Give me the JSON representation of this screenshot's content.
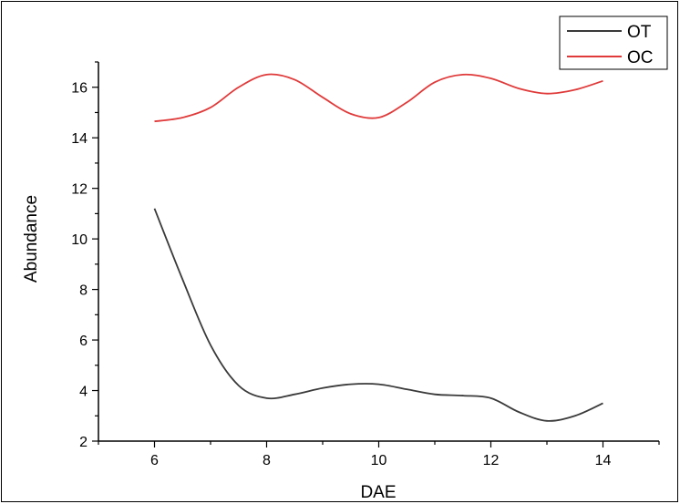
{
  "chart_data": {
    "type": "line",
    "title": "",
    "xlabel": "DAE",
    "ylabel": "Abundance",
    "xlim": [
      5,
      15
    ],
    "ylim": [
      2,
      17
    ],
    "xticks": [
      6,
      8,
      10,
      12,
      14
    ],
    "yticks": [
      2,
      4,
      6,
      8,
      10,
      12,
      14,
      16
    ],
    "grid": false,
    "legend_position": "top-right",
    "series": [
      {
        "name": "OT",
        "color": "#3a3a3a",
        "x": [
          6,
          6.5,
          7,
          7.5,
          8,
          8.5,
          9,
          9.5,
          10,
          10.5,
          11,
          11.5,
          12,
          12.5,
          13,
          13.5,
          14
        ],
        "y": [
          11.2,
          8.4,
          5.8,
          4.2,
          3.7,
          3.85,
          4.1,
          4.25,
          4.25,
          4.05,
          3.85,
          3.8,
          3.7,
          3.15,
          2.8,
          3.0,
          3.5
        ]
      },
      {
        "name": "OC",
        "color": "#e03a3a",
        "x": [
          6,
          6.5,
          7,
          7.5,
          8,
          8.5,
          9,
          9.5,
          10,
          10.5,
          11,
          11.5,
          12,
          12.5,
          13,
          13.5,
          14
        ],
        "y": [
          14.65,
          14.8,
          15.2,
          16.0,
          16.5,
          16.3,
          15.6,
          14.95,
          14.8,
          15.4,
          16.2,
          16.5,
          16.35,
          15.95,
          15.75,
          15.9,
          16.25
        ]
      }
    ]
  }
}
